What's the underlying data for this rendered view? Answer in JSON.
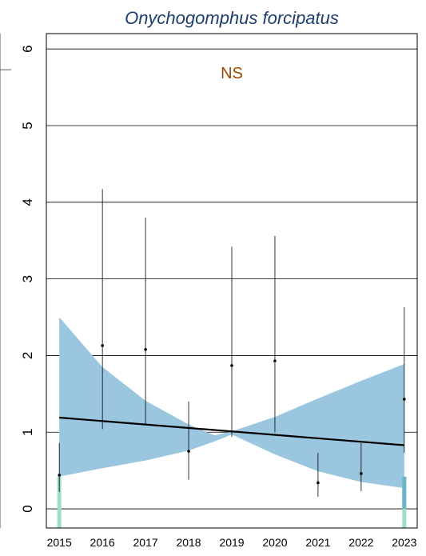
{
  "chart_data": {
    "type": "line",
    "title": "Onychogomphus forcipatus",
    "annotation": "NS",
    "xlabel": "",
    "ylabel": "",
    "x_ticks": [
      "2015",
      "2016",
      "2017",
      "2018",
      "2019",
      "2020",
      "2021",
      "2022",
      "2023"
    ],
    "y_ticks": [
      "0",
      "1",
      "2",
      "3",
      "4",
      "5",
      "6"
    ],
    "xlim": [
      2014.7,
      2023.3
    ],
    "ylim": [
      -0.25,
      6.2
    ],
    "grid": "horizontal",
    "legend": "none",
    "colors": {
      "band": "#9ac6e0",
      "trend": "#000000",
      "points": "#000000",
      "errorbars": "#000000",
      "annotation": "#9c4a00",
      "title": "#1c3d6e",
      "baseline_bars": "#9fdcc8",
      "end_bar": "#6ab4c8"
    },
    "points": [
      {
        "x": 2015,
        "y": 0.44,
        "lower": 0.22,
        "upper": 0.86
      },
      {
        "x": 2016,
        "y": 2.13,
        "lower": 1.04,
        "upper": 4.17
      },
      {
        "x": 2017,
        "y": 2.08,
        "lower": 1.09,
        "upper": 3.8
      },
      {
        "x": 2018,
        "y": 0.75,
        "lower": 0.38,
        "upper": 1.4
      },
      {
        "x": 2019,
        "y": 1.87,
        "lower": 0.94,
        "upper": 3.42
      },
      {
        "x": 2020,
        "y": 1.93,
        "lower": 1.0,
        "upper": 3.56
      },
      {
        "x": 2021,
        "y": 0.34,
        "lower": 0.16,
        "upper": 0.73
      },
      {
        "x": 2022,
        "y": 0.46,
        "lower": 0.23,
        "upper": 0.86
      },
      {
        "x": 2023,
        "y": 1.43,
        "lower": 0.73,
        "upper": 2.63
      }
    ],
    "trend": {
      "x": [
        2015,
        2023
      ],
      "y": [
        1.19,
        0.83
      ]
    },
    "band": {
      "x": [
        2015,
        2016,
        2017,
        2018,
        2018.6,
        2019,
        2020,
        2021,
        2022,
        2023
      ],
      "upper": [
        2.5,
        1.85,
        1.41,
        1.1,
        0.96,
        1.01,
        1.2,
        1.44,
        1.67,
        1.89
      ],
      "lower": [
        0.42,
        0.53,
        0.63,
        0.76,
        0.88,
        0.97,
        0.71,
        0.49,
        0.35,
        0.27
      ]
    },
    "baseline_bars": [
      {
        "x": 2015,
        "y": 0.42
      },
      {
        "x": 2023,
        "y": 0.42
      }
    ]
  }
}
